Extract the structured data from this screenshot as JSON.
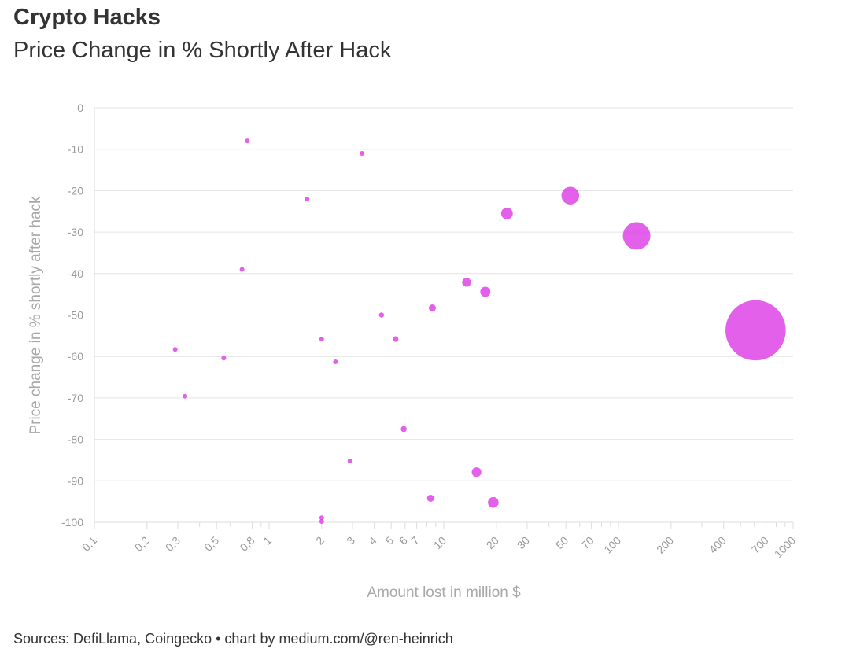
{
  "title": "Crypto Hacks",
  "subtitle": "Price Change in % Shortly After Hack",
  "source": "Sources: DefiLlama, Coingecko • chart by medium.com/@ren-heinrich",
  "colors": {
    "bubble": "#dd44e6",
    "text": "#333333",
    "axis_text": "#999999",
    "grid": "#e4e4e4"
  },
  "chart_data": {
    "type": "scatter",
    "xscale": "log",
    "xlabel": "Amount lost in million $",
    "ylabel": "Price change in % shortly after hack",
    "xlim": [
      0.1,
      1000
    ],
    "ylim": [
      -100,
      0
    ],
    "grid": "horizontal",
    "yticks": [
      "0",
      "-10",
      "-20",
      "-30",
      "-40",
      "-50",
      "-60",
      "-70",
      "-80",
      "-90",
      "-100"
    ],
    "xticks": [
      {
        "value": 0.1,
        "label": "0,1"
      },
      {
        "value": 0.2,
        "label": "0,2"
      },
      {
        "value": 0.3,
        "label": "0,3"
      },
      {
        "value": 0.5,
        "label": "0,5"
      },
      {
        "value": 0.8,
        "label": "0,8"
      },
      {
        "value": 1,
        "label": "1"
      },
      {
        "value": 2,
        "label": "2"
      },
      {
        "value": 3,
        "label": "3"
      },
      {
        "value": 4,
        "label": "4"
      },
      {
        "value": 5,
        "label": "5"
      },
      {
        "value": 6,
        "label": "6"
      },
      {
        "value": 7,
        "label": "7"
      },
      {
        "value": 10,
        "label": "10"
      },
      {
        "value": 20,
        "label": "20"
      },
      {
        "value": 30,
        "label": "30"
      },
      {
        "value": 50,
        "label": "50"
      },
      {
        "value": 70,
        "label": "70"
      },
      {
        "value": 100,
        "label": "100"
      },
      {
        "value": 200,
        "label": "200"
      },
      {
        "value": 400,
        "label": "400"
      },
      {
        "value": 700,
        "label": "700"
      },
      {
        "value": 1000,
        "label": "1000"
      }
    ],
    "minor_xticks": [
      0.4,
      0.6,
      0.7,
      0.9,
      8,
      9,
      40,
      60,
      80,
      90,
      300,
      500,
      600,
      800,
      900
    ],
    "points": [
      {
        "x": 0.75,
        "y": -8
      },
      {
        "x": 3.4,
        "y": -11
      },
      {
        "x": 1.65,
        "y": -22
      },
      {
        "x": 0.7,
        "y": -39
      },
      {
        "x": 0.29,
        "y": -58.3
      },
      {
        "x": 0.55,
        "y": -60.4
      },
      {
        "x": 0.33,
        "y": -69.6
      },
      {
        "x": 2.0,
        "y": -55.8
      },
      {
        "x": 2.4,
        "y": -61.3
      },
      {
        "x": 4.4,
        "y": -50
      },
      {
        "x": 5.3,
        "y": -55.8
      },
      {
        "x": 5.9,
        "y": -77.5
      },
      {
        "x": 2.9,
        "y": -85.2
      },
      {
        "x": 2.0,
        "y": -98.9
      },
      {
        "x": 2.0,
        "y": -99.8
      },
      {
        "x": 8.6,
        "y": -48.3
      },
      {
        "x": 8.4,
        "y": -94.2
      },
      {
        "x": 13.5,
        "y": -42.1
      },
      {
        "x": 17.3,
        "y": -44.4
      },
      {
        "x": 15.4,
        "y": -87.9
      },
      {
        "x": 19.2,
        "y": -95.2
      },
      {
        "x": 23,
        "y": -25.5
      },
      {
        "x": 53,
        "y": -21.2
      },
      {
        "x": 127,
        "y": -30.9
      },
      {
        "x": 610,
        "y": -53.7
      }
    ]
  }
}
